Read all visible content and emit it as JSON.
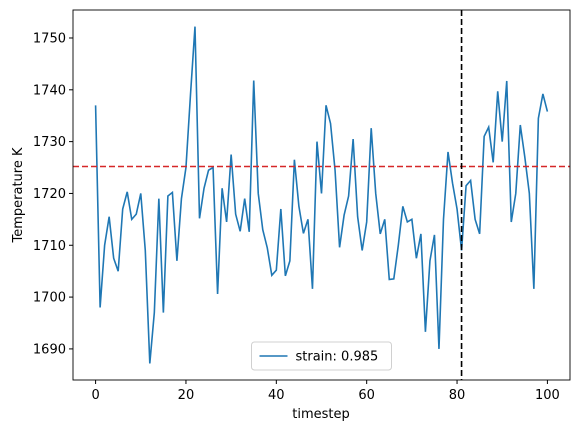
{
  "chart_data": {
    "type": "line",
    "xlabel": "timestep",
    "ylabel": "Temperature K",
    "x": [
      0,
      1,
      2,
      3,
      4,
      5,
      6,
      7,
      8,
      9,
      10,
      11,
      12,
      13,
      14,
      15,
      16,
      17,
      18,
      19,
      20,
      21,
      22,
      23,
      24,
      25,
      26,
      27,
      28,
      29,
      30,
      31,
      32,
      33,
      34,
      35,
      36,
      37,
      38,
      39,
      40,
      41,
      42,
      43,
      44,
      45,
      46,
      47,
      48,
      49,
      50,
      51,
      52,
      53,
      54,
      55,
      56,
      57,
      58,
      59,
      60,
      61,
      62,
      63,
      64,
      65,
      66,
      67,
      68,
      69,
      70,
      71,
      72,
      73,
      74,
      75,
      76,
      77,
      78,
      79,
      80,
      81,
      82,
      83,
      84,
      85,
      86,
      87,
      88,
      89,
      90,
      91,
      92,
      93,
      94,
      95,
      96,
      97,
      98,
      99,
      100
    ],
    "series": [
      {
        "name": "strain: 0.985",
        "color": "#1f77b4",
        "values": [
          1737,
          1698,
          1710,
          1715.5,
          1707.5,
          1705,
          1717,
          1720.3,
          1715,
          1716,
          1720,
          1709,
          1687.2,
          1697,
          1719,
          1697,
          1719.5,
          1720.2,
          1707,
          1719,
          1725,
          1739,
          1752.2,
          1715.2,
          1721,
          1724.5,
          1725,
          1700.6,
          1721,
          1714.5,
          1727.5,
          1716,
          1712.7,
          1719,
          1712.6,
          1741.8,
          1720,
          1713,
          1709.5,
          1704.2,
          1705.2,
          1717,
          1704.1,
          1707,
          1726.5,
          1717.5,
          1712.3,
          1715,
          1701.6,
          1730,
          1720,
          1737,
          1733.5,
          1724.5,
          1709.6,
          1715.8,
          1719.5,
          1730.5,
          1715.5,
          1709,
          1714.5,
          1732.6,
          1720,
          1712.2,
          1715,
          1703.4,
          1703.5,
          1710,
          1717.5,
          1714.5,
          1715,
          1707.5,
          1712.2,
          1693.3,
          1707,
          1712,
          1690,
          1715,
          1728,
          1722,
          1717,
          1709,
          1721.5,
          1722.5,
          1715,
          1712.2,
          1731,
          1732.8,
          1726,
          1739.7,
          1730,
          1741.7,
          1714.5,
          1720,
          1733.2,
          1727,
          1720,
          1701.6,
          1734.5,
          1739.2,
          1735.8
        ]
      }
    ],
    "hlines": [
      {
        "y": 1725.2,
        "color": "#d62728"
      }
    ],
    "vlines": [
      {
        "x": 81,
        "color": "#000000"
      }
    ],
    "xlim": [
      -5,
      105
    ],
    "ylim": [
      1684,
      1755.4
    ],
    "xticks": [
      0,
      20,
      40,
      60,
      80,
      100
    ],
    "yticks": [
      1690,
      1700,
      1710,
      1720,
      1730,
      1740,
      1750
    ],
    "legend": "lower center"
  }
}
